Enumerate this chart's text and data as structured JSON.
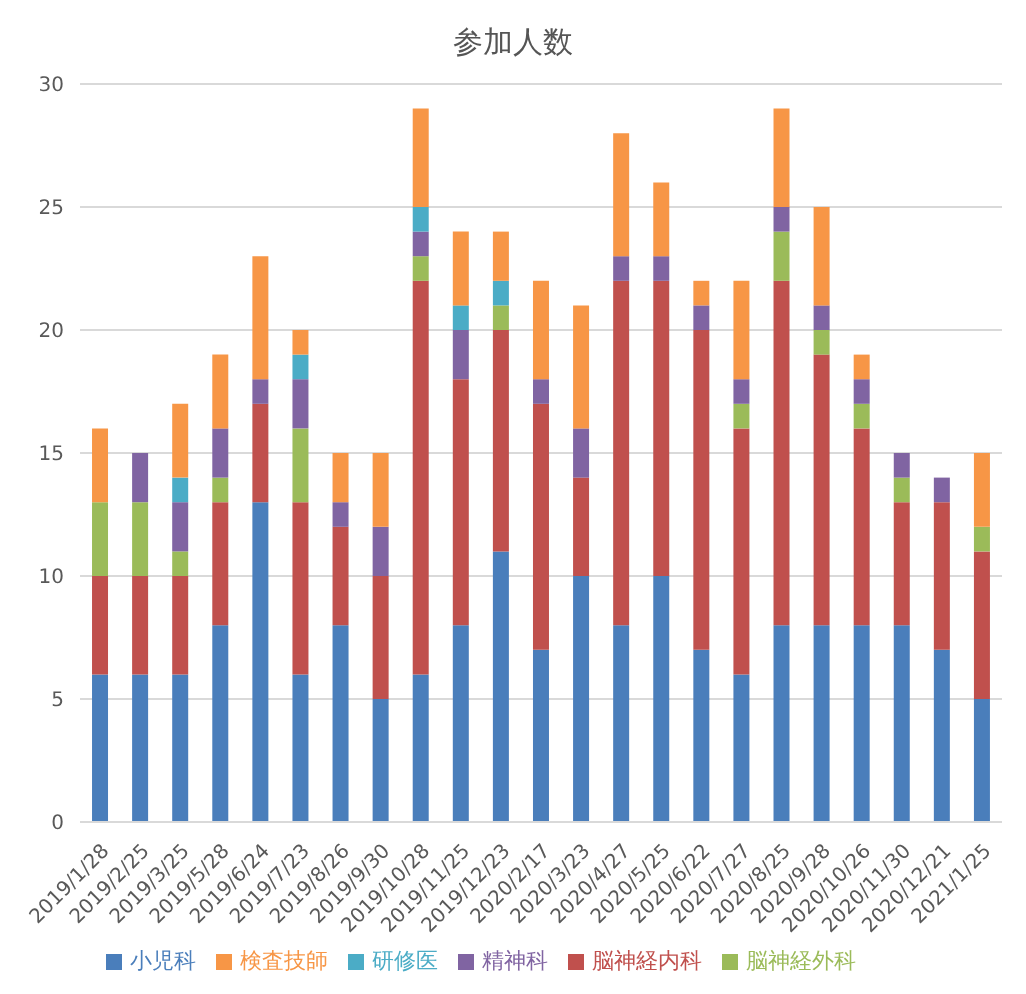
{
  "chart_data": {
    "type": "bar",
    "title": "参加人数",
    "stacked": true,
    "grid": "y",
    "legend": "bottom",
    "categories": [
      "2019/1/28",
      "2019/2/25",
      "2019/3/25",
      "2019/5/28",
      "2019/6/24",
      "2019/7/23",
      "2019/8/26",
      "2019/9/30",
      "2019/10/28",
      "2019/11/25",
      "2019/12/23",
      "2020/2/17",
      "2020/3/23",
      "2020/4/27",
      "2020/5/25",
      "2020/6/22",
      "2020/7/27",
      "2020/8/25",
      "2020/9/28",
      "2020/10/26",
      "2020/11/30",
      "2020/12/21",
      "2021/1/25"
    ],
    "ylim": [
      0,
      30
    ],
    "yticks": [
      0,
      5,
      10,
      15,
      20,
      25,
      30
    ],
    "series": [
      {
        "name": "小児科",
        "color": "#4a7ebb",
        "values": [
          6,
          6,
          6,
          8,
          13,
          6,
          8,
          5,
          6,
          8,
          11,
          7,
          10,
          8,
          10,
          7,
          6,
          8,
          8,
          8,
          8,
          7,
          5
        ]
      },
      {
        "name": "脳神経内科",
        "color": "#c0504d",
        "values": [
          4,
          4,
          4,
          5,
          4,
          7,
          4,
          5,
          16,
          10,
          9,
          10,
          4,
          14,
          12,
          13,
          10,
          14,
          11,
          8,
          5,
          6,
          6
        ]
      },
      {
        "name": "脳神経外科",
        "color": "#9bbb59",
        "values": [
          3,
          3,
          1,
          1,
          0,
          3,
          0,
          0,
          1,
          0,
          1,
          0,
          0,
          0,
          0,
          0,
          1,
          2,
          1,
          1,
          1,
          0,
          1
        ]
      },
      {
        "name": "精神科",
        "color": "#8064a2",
        "values": [
          0,
          2,
          2,
          2,
          1,
          2,
          1,
          2,
          1,
          2,
          0,
          1,
          2,
          1,
          1,
          1,
          1,
          1,
          1,
          1,
          1,
          1,
          0
        ]
      },
      {
        "name": "研修医",
        "color": "#4bacc6",
        "values": [
          0,
          0,
          1,
          0,
          0,
          1,
          0,
          0,
          1,
          1,
          1,
          0,
          0,
          0,
          0,
          0,
          0,
          0,
          0,
          0,
          0,
          0,
          0
        ]
      },
      {
        "name": "検査技師",
        "color": "#f79646",
        "values": [
          3,
          0,
          3,
          3,
          5,
          1,
          2,
          3,
          4,
          3,
          2,
          4,
          5,
          5,
          3,
          1,
          4,
          4,
          4,
          1,
          0,
          0,
          3
        ]
      }
    ]
  }
}
